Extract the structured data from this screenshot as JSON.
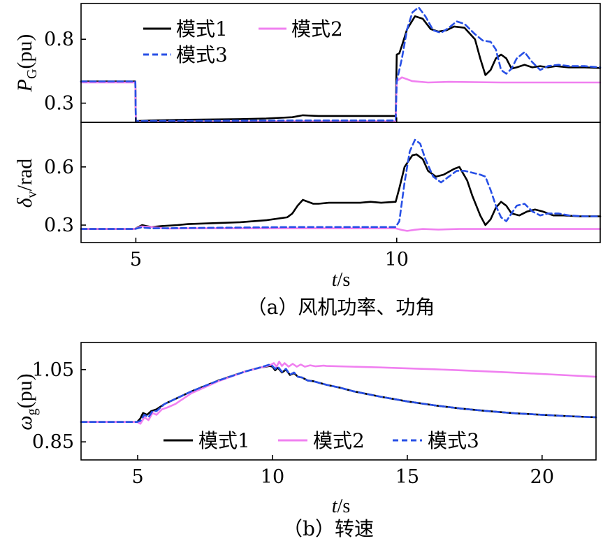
{
  "colors": {
    "mode1": "#000000",
    "mode2": "#f080f0",
    "mode3": "#2850e6"
  },
  "chart_data": [
    {
      "type": "line",
      "id": "power",
      "ylabel_main": "P",
      "ylabel_sub": "G",
      "ylabel_unit": "(pu)",
      "xlim": [
        3.95,
        13.9
      ],
      "ylim": [
        0.15,
        1.08
      ],
      "yticks": [
        0.3,
        0.8
      ],
      "ytick_labels": [
        "0.3",
        "0.8"
      ],
      "legend_location": "top-left",
      "series": [
        {
          "name": "模式1",
          "dash": "solid",
          "x": [
            3.95,
            4.99,
            5.0,
            5.3,
            6,
            7,
            7.5,
            8,
            8.2,
            8.5,
            9,
            9.5,
            9.98,
            10.0,
            10.05,
            10.1,
            10.2,
            10.35,
            10.5,
            10.65,
            10.8,
            10.95,
            11.1,
            11.3,
            11.5,
            11.6,
            11.7,
            11.8,
            11.9,
            12.0,
            12.1,
            12.2,
            12.3,
            12.45,
            12.6,
            12.75,
            12.9,
            13.05,
            13.3,
            13.6,
            13.9
          ],
          "y": [
            0.47,
            0.47,
            0.16,
            0.165,
            0.17,
            0.175,
            0.18,
            0.19,
            0.205,
            0.2,
            0.2,
            0.2,
            0.2,
            0.68,
            0.69,
            0.75,
            0.88,
            0.98,
            0.96,
            0.88,
            0.86,
            0.87,
            0.9,
            0.89,
            0.8,
            0.65,
            0.52,
            0.56,
            0.65,
            0.68,
            0.65,
            0.57,
            0.58,
            0.6,
            0.58,
            0.59,
            0.58,
            0.59,
            0.58,
            0.58,
            0.575
          ]
        },
        {
          "name": "模式2",
          "dash": "solid",
          "x": [
            3.95,
            4.99,
            5.0,
            6,
            8,
            9.98,
            10.0,
            10.1,
            10.3,
            10.6,
            11,
            12,
            13.9
          ],
          "y": [
            0.47,
            0.47,
            0.16,
            0.162,
            0.165,
            0.165,
            0.48,
            0.51,
            0.48,
            0.47,
            0.475,
            0.47,
            0.47
          ],
          "yshift": 0.008
        },
        {
          "name": "模式3",
          "dash": "8,5",
          "x": [
            3.95,
            4.99,
            5.0,
            6,
            8,
            9.98,
            10.0,
            10.1,
            10.2,
            10.3,
            10.42,
            10.55,
            10.7,
            10.85,
            11.0,
            11.15,
            11.3,
            11.5,
            11.65,
            11.8,
            11.9,
            12.0,
            12.1,
            12.2,
            12.3,
            12.45,
            12.6,
            12.75,
            12.9,
            13.1,
            13.3,
            13.6,
            13.9
          ],
          "y": [
            0.47,
            0.47,
            0.16,
            0.162,
            0.165,
            0.165,
            0.47,
            0.65,
            0.88,
            1.01,
            1.05,
            0.98,
            0.87,
            0.85,
            0.89,
            0.94,
            0.92,
            0.84,
            0.79,
            0.78,
            0.72,
            0.56,
            0.53,
            0.57,
            0.65,
            0.7,
            0.62,
            0.56,
            0.59,
            0.6,
            0.59,
            0.59,
            0.58
          ]
        }
      ]
    },
    {
      "type": "line",
      "id": "angle",
      "ylabel_main": "δ",
      "ylabel_sub": "v",
      "ylabel_unit": "/rad",
      "xlim": [
        3.95,
        13.9
      ],
      "ylim": [
        0.21,
        0.83
      ],
      "yticks": [
        0.3,
        0.6
      ],
      "ytick_labels": [
        "0.3",
        "0.6"
      ],
      "xticks": [
        5,
        10
      ],
      "xtick_labels": [
        "5",
        "10"
      ],
      "xlabel_main": "t",
      "xlabel_unit": "/s",
      "series": [
        {
          "name": "模式1",
          "dash": "solid",
          "x": [
            3.95,
            4.98,
            5.05,
            5.12,
            5.2,
            5.3,
            5.5,
            5.8,
            6,
            7,
            7.5,
            7.9,
            8.0,
            8.1,
            8.2,
            8.3,
            8.4,
            8.5,
            8.7,
            9,
            9.3,
            9.5,
            9.7,
            9.98,
            10.05,
            10.15,
            10.3,
            10.38,
            10.5,
            10.6,
            10.75,
            10.9,
            11.1,
            11.2,
            11.35,
            11.45,
            11.6,
            11.7,
            11.8,
            11.9,
            12.0,
            12.1,
            12.2,
            12.35,
            12.5,
            12.65,
            12.8,
            13.0,
            13.2,
            13.5,
            13.9
          ],
          "y": [
            0.28,
            0.28,
            0.29,
            0.3,
            0.295,
            0.29,
            0.295,
            0.3,
            0.305,
            0.315,
            0.325,
            0.34,
            0.36,
            0.4,
            0.43,
            0.42,
            0.41,
            0.41,
            0.415,
            0.415,
            0.415,
            0.42,
            0.415,
            0.42,
            0.49,
            0.6,
            0.66,
            0.665,
            0.64,
            0.58,
            0.55,
            0.56,
            0.59,
            0.6,
            0.53,
            0.45,
            0.35,
            0.3,
            0.33,
            0.39,
            0.42,
            0.4,
            0.36,
            0.35,
            0.37,
            0.38,
            0.37,
            0.35,
            0.35,
            0.345,
            0.345
          ]
        },
        {
          "name": "模式2",
          "dash": "solid",
          "x": [
            3.95,
            4.98,
            5.1,
            5.3,
            5.6,
            6,
            8,
            9.98,
            10.1,
            10.2,
            10.35,
            10.5,
            10.8,
            11.2,
            12,
            13.9
          ],
          "y": [
            0.28,
            0.28,
            0.293,
            0.29,
            0.282,
            0.283,
            0.283,
            0.283,
            0.275,
            0.27,
            0.276,
            0.28,
            0.277,
            0.28,
            0.28,
            0.28
          ]
        },
        {
          "name": "模式3",
          "dash": "8,5",
          "x": [
            3.95,
            4.98,
            5.1,
            5.3,
            5.6,
            6,
            8,
            9.98,
            10.05,
            10.15,
            10.25,
            10.35,
            10.45,
            10.55,
            10.7,
            10.85,
            11.0,
            11.15,
            11.3,
            11.45,
            11.6,
            11.7,
            11.8,
            11.9,
            12.0,
            12.1,
            12.2,
            12.3,
            12.45,
            12.6,
            12.75,
            12.9,
            13.1,
            13.3,
            13.6,
            13.9
          ],
          "y": [
            0.28,
            0.28,
            0.288,
            0.283,
            0.284,
            0.285,
            0.29,
            0.29,
            0.32,
            0.52,
            0.68,
            0.74,
            0.72,
            0.64,
            0.55,
            0.52,
            0.55,
            0.58,
            0.58,
            0.57,
            0.56,
            0.55,
            0.48,
            0.4,
            0.34,
            0.32,
            0.36,
            0.4,
            0.41,
            0.37,
            0.35,
            0.36,
            0.36,
            0.35,
            0.345,
            0.345
          ]
        }
      ]
    },
    {
      "type": "line",
      "id": "speed",
      "ylabel_main": "ω",
      "ylabel_sub": "g",
      "ylabel_unit": "(pu)",
      "xlim": [
        2.9,
        22.0
      ],
      "ylim": [
        0.8,
        1.125
      ],
      "yticks": [
        0.85,
        1.05
      ],
      "ytick_labels": [
        "0.85",
        "1.05"
      ],
      "xticks": [
        5,
        10,
        15,
        20
      ],
      "xtick_labels": [
        "5",
        "10",
        "15",
        "20"
      ],
      "xlabel_main": "t",
      "xlabel_unit": "/s",
      "legend_location": "bottom-center",
      "series": [
        {
          "name": "模式1",
          "dash": "solid",
          "x": [
            2.9,
            4.98,
            5.1,
            5.2,
            5.35,
            5.5,
            5.7,
            6,
            7,
            8,
            9,
            9.5,
            9.9,
            10.0,
            10.1,
            10.2,
            10.35,
            10.5,
            10.65,
            10.8,
            10.95,
            11.1,
            11.3,
            11.5,
            11.8,
            12,
            12.5,
            13,
            14,
            15,
            16,
            17,
            18,
            19,
            20,
            21,
            22
          ],
          "y": [
            0.905,
            0.905,
            0.915,
            0.93,
            0.925,
            0.935,
            0.94,
            0.955,
            0.99,
            1.02,
            1.045,
            1.055,
            1.06,
            1.058,
            1.048,
            1.055,
            1.042,
            1.05,
            1.035,
            1.04,
            1.03,
            1.028,
            1.02,
            1.018,
            1.012,
            1.008,
            1.0,
            0.99,
            0.975,
            0.962,
            0.951,
            0.942,
            0.935,
            0.929,
            0.925,
            0.921,
            0.918
          ]
        },
        {
          "name": "模式2",
          "dash": "solid",
          "x": [
            2.9,
            4.98,
            5.1,
            5.25,
            5.4,
            5.55,
            5.7,
            5.9,
            6.1,
            6.4,
            7,
            8,
            9,
            9.9,
            10.05,
            10.15,
            10.25,
            10.35,
            10.45,
            10.6,
            10.75,
            10.9,
            11.05,
            11.2,
            11.4,
            11.6,
            11.9,
            12,
            14,
            16,
            18,
            20,
            22
          ],
          "y": [
            0.905,
            0.905,
            0.9,
            0.918,
            0.91,
            0.93,
            0.925,
            0.94,
            0.945,
            0.955,
            0.985,
            1.018,
            1.045,
            1.062,
            1.068,
            1.058,
            1.072,
            1.06,
            1.068,
            1.058,
            1.066,
            1.058,
            1.064,
            1.058,
            1.062,
            1.059,
            1.061,
            1.06,
            1.056,
            1.051,
            1.045,
            1.038,
            1.03
          ]
        },
        {
          "name": "模式3",
          "dash": "8,5",
          "x": [
            2.9,
            4.98,
            5.1,
            5.25,
            5.4,
            5.55,
            5.7,
            6,
            7,
            8,
            9,
            9.5,
            9.9,
            10.0,
            10.1,
            10.2,
            10.35,
            10.5,
            10.65,
            10.8,
            10.95,
            11.1,
            11.3,
            11.5,
            11.8,
            12,
            12.5,
            13,
            14,
            15,
            16,
            17,
            18,
            19,
            20,
            21,
            22
          ],
          "y": [
            0.905,
            0.905,
            0.908,
            0.925,
            0.918,
            0.935,
            0.935,
            0.955,
            0.99,
            1.02,
            1.045,
            1.055,
            1.064,
            1.06,
            1.052,
            1.058,
            1.044,
            1.052,
            1.036,
            1.042,
            1.03,
            1.028,
            1.02,
            1.018,
            1.012,
            1.008,
            1.0,
            0.99,
            0.975,
            0.962,
            0.951,
            0.942,
            0.935,
            0.929,
            0.925,
            0.921,
            0.918
          ]
        }
      ]
    }
  ],
  "legend": {
    "mode1": "模式1",
    "mode2": "模式2",
    "mode3": "模式3"
  },
  "captions": {
    "a": "（a）风机功率、功角",
    "b": "（b）转速"
  }
}
